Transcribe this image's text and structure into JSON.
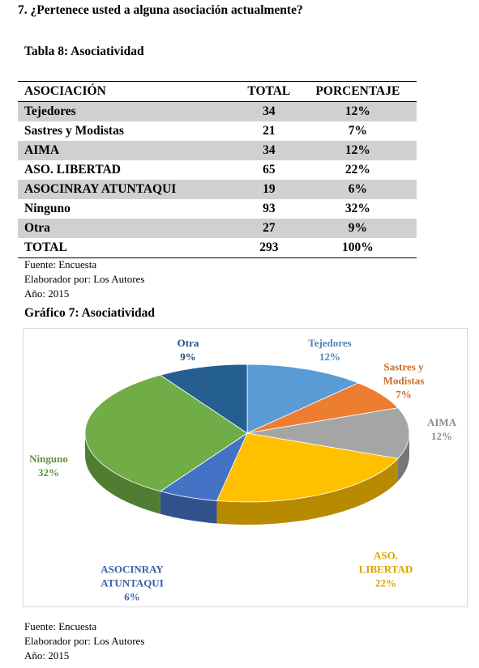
{
  "question": "7. ¿Pertenece usted a alguna asociación actualmente?",
  "table": {
    "caption": "Tabla 8: Asociatividad",
    "header": [
      "ASOCIACIÓN",
      "TOTAL",
      "PORCENTAJE"
    ],
    "rows": [
      [
        "Tejedores",
        34,
        "12%"
      ],
      [
        "Sastres y Modistas",
        21,
        "7%"
      ],
      [
        "AIMA",
        34,
        "12%"
      ],
      [
        "ASO. LIBERTAD",
        65,
        "22%"
      ],
      [
        "ASOCINRAY ATUNTAQUI",
        19,
        "6%"
      ],
      [
        "Ninguno",
        93,
        "32%"
      ],
      [
        "Otra",
        27,
        "9%"
      ]
    ],
    "footer": [
      "TOTAL",
      293,
      "100%"
    ]
  },
  "table_source": [
    "Fuente: Encuesta",
    "Elaborador por: Los Autores",
    "Año: 2015"
  ],
  "chart_data": {
    "type": "pie",
    "title": "Gráfico 7: Asociatividad",
    "categories": [
      "Tejedores",
      "Sastres y Modistas",
      "AIMA",
      "ASO. LIBERTAD",
      "ASOCINRAY ATUNTAQUI",
      "Ninguno",
      "Otra"
    ],
    "values": [
      12,
      7,
      12,
      22,
      6,
      32,
      9
    ],
    "value_labels": [
      "12%",
      "7%",
      "12%",
      "22%",
      "6%",
      "32%",
      "9%"
    ],
    "colors": [
      "#5b9bd5",
      "#ed7d31",
      "#a5a5a5",
      "#ffc000",
      "#4472c4",
      "#70ad47",
      "#255e91"
    ]
  },
  "chart_source": [
    "Fuente: Encuesta",
    "Elaborador por: Los Autores",
    "Año: 2015"
  ]
}
